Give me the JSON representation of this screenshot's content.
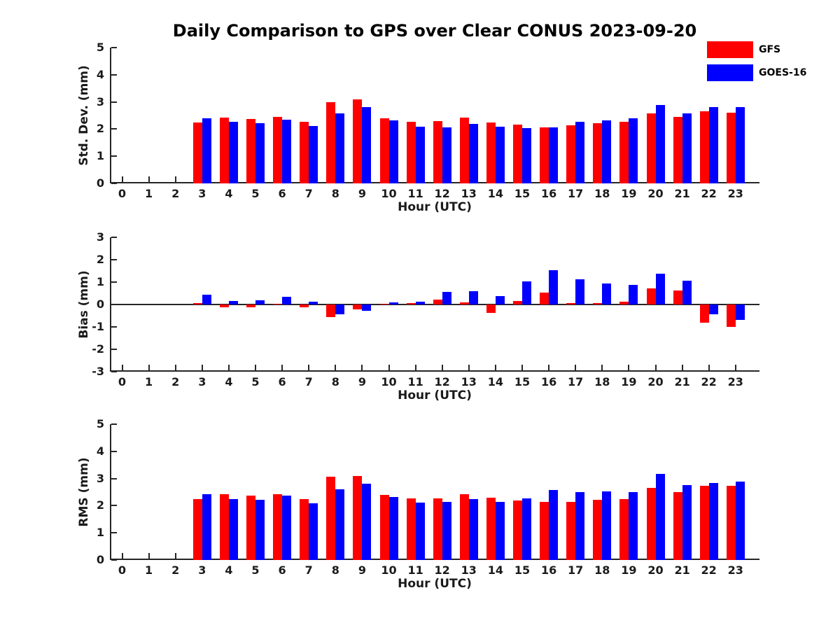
{
  "title": "Daily Comparison to GPS over Clear CONUS 2023-09-20",
  "legend": {
    "items": [
      {
        "label": "GFS",
        "color": "#ff0000"
      },
      {
        "label": "GOES-16",
        "color": "#0000ff"
      }
    ]
  },
  "colors": {
    "gfs": "#ff0000",
    "goes16": "#0000ff",
    "axis": "#262626"
  },
  "chart_data": [
    {
      "type": "bar",
      "title": "Std. Dev. subplot",
      "ylabel": "Std. Dev. (mm)",
      "xlabel": "Hour (UTC)",
      "ylim": [
        0,
        5
      ],
      "yticks": [
        0,
        1,
        2,
        3,
        4,
        5
      ],
      "grid": false,
      "legend_position": "top-right",
      "categories": [
        "0",
        "1",
        "2",
        "3",
        "4",
        "5",
        "6",
        "7",
        "8",
        "9",
        "10",
        "11",
        "12",
        "13",
        "14",
        "15",
        "16",
        "17",
        "18",
        "19",
        "20",
        "21",
        "22",
        "23"
      ],
      "series": [
        {
          "name": "GFS",
          "color": "#ff0000",
          "values": [
            null,
            null,
            null,
            2.25,
            2.42,
            2.37,
            2.44,
            2.27,
            3.0,
            3.08,
            2.4,
            2.27,
            2.3,
            2.43,
            2.25,
            2.17,
            2.07,
            2.13,
            2.22,
            2.27,
            2.57,
            2.46,
            2.65,
            2.6
          ]
        },
        {
          "name": "GOES-16",
          "color": "#0000ff",
          "values": [
            null,
            null,
            null,
            2.4,
            2.27,
            2.22,
            2.35,
            2.12,
            2.57,
            2.8,
            2.33,
            2.1,
            2.05,
            2.19,
            2.1,
            2.04,
            2.07,
            2.26,
            2.32,
            2.4,
            2.88,
            2.58,
            2.81,
            2.81
          ]
        }
      ]
    },
    {
      "type": "bar",
      "title": "Bias subplot",
      "ylabel": "Bias (mm)",
      "xlabel": "Hour (UTC)",
      "ylim": [
        -3,
        3
      ],
      "yticks": [
        3,
        2,
        1,
        0,
        -1,
        -2,
        -3
      ],
      "grid": false,
      "zero_line": true,
      "categories": [
        "0",
        "1",
        "2",
        "3",
        "4",
        "5",
        "6",
        "7",
        "8",
        "9",
        "10",
        "11",
        "12",
        "13",
        "14",
        "15",
        "16",
        "17",
        "18",
        "19",
        "20",
        "21",
        "22",
        "23"
      ],
      "series": [
        {
          "name": "GFS",
          "color": "#ff0000",
          "values": [
            null,
            null,
            null,
            0.07,
            -0.13,
            -0.12,
            0.03,
            -0.12,
            -0.57,
            -0.23,
            0.04,
            0.05,
            0.23,
            0.08,
            -0.37,
            0.16,
            0.53,
            0.07,
            0.06,
            0.13,
            0.73,
            0.62,
            -0.82,
            -1.0
          ]
        },
        {
          "name": "GOES-16",
          "color": "#0000ff",
          "values": [
            null,
            null,
            null,
            0.44,
            0.15,
            0.18,
            0.33,
            0.11,
            -0.44,
            -0.28,
            0.1,
            0.13,
            0.57,
            0.6,
            0.39,
            1.03,
            1.52,
            1.14,
            0.93,
            0.86,
            1.38,
            1.06,
            -0.43,
            -0.7
          ]
        }
      ]
    },
    {
      "type": "bar",
      "title": "RMS subplot",
      "ylabel": "RMS (mm)",
      "xlabel": "Hour (UTC)",
      "ylim": [
        0,
        5
      ],
      "yticks": [
        0,
        1,
        2,
        3,
        4,
        5
      ],
      "grid": false,
      "categories": [
        "0",
        "1",
        "2",
        "3",
        "4",
        "5",
        "6",
        "7",
        "8",
        "9",
        "10",
        "11",
        "12",
        "13",
        "14",
        "15",
        "16",
        "17",
        "18",
        "19",
        "20",
        "21",
        "22",
        "23"
      ],
      "series": [
        {
          "name": "GFS",
          "color": "#ff0000",
          "values": [
            null,
            null,
            null,
            2.25,
            2.42,
            2.37,
            2.41,
            2.25,
            3.06,
            3.09,
            2.39,
            2.26,
            2.28,
            2.43,
            2.29,
            2.19,
            2.14,
            2.13,
            2.21,
            2.25,
            2.65,
            2.49,
            2.74,
            2.74
          ]
        },
        {
          "name": "GOES-16",
          "color": "#0000ff",
          "values": [
            null,
            null,
            null,
            2.42,
            2.25,
            2.21,
            2.37,
            2.09,
            2.6,
            2.8,
            2.32,
            2.11,
            2.13,
            2.23,
            2.14,
            2.28,
            2.57,
            2.5,
            2.52,
            2.51,
            3.16,
            2.77,
            2.83,
            2.88
          ]
        }
      ]
    }
  ]
}
